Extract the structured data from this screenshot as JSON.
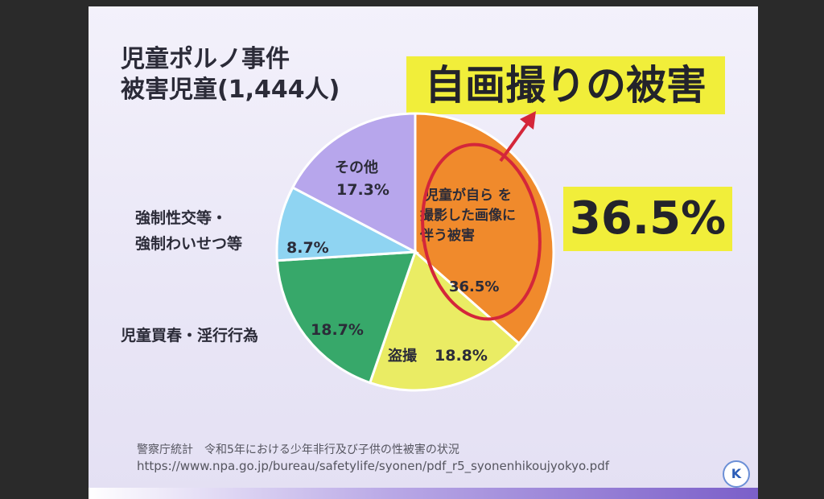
{
  "title": {
    "line1": "児童ポルノ事件",
    "line2": "被害児童(1,444人)"
  },
  "headline": "自画撮りの被害",
  "highlight_value": "36.5%",
  "chart_data": {
    "type": "pie",
    "slices": [
      {
        "label_lines": [
          "児童が自ら を",
          "撮影した画像に",
          "伴う被害"
        ],
        "value": 36.5,
        "value_label": "36.5%",
        "color": "#f08a2c"
      },
      {
        "label_lines": [
          "盗撮"
        ],
        "value": 18.8,
        "value_label": "18.8%",
        "color": "#eaec64"
      },
      {
        "label_lines": [
          "児童買春・淫行行為"
        ],
        "value": 18.7,
        "value_label": "18.7%",
        "color": "#37a86a"
      },
      {
        "label_lines": [
          "強制性交等・",
          "強制わいせつ等"
        ],
        "value": 8.7,
        "value_label": "8.7%",
        "color": "#8fd4f2"
      },
      {
        "label_lines": [
          "その他"
        ],
        "value": 17.3,
        "value_label": "17.3%",
        "color": "#b7a6ec"
      }
    ]
  },
  "source": {
    "line1": "警察庁統計　令和5年における少年非行及び子供の性被害の状況",
    "line2": "https://www.npa.go.jp/bureau/safetylife/syonen/pdf_r5_syonenhikoujyokyo.pdf"
  },
  "colors": {
    "highlight": "#f1ee3a",
    "annotation": "#d4263a"
  },
  "logo_icon": "police-logo-icon"
}
